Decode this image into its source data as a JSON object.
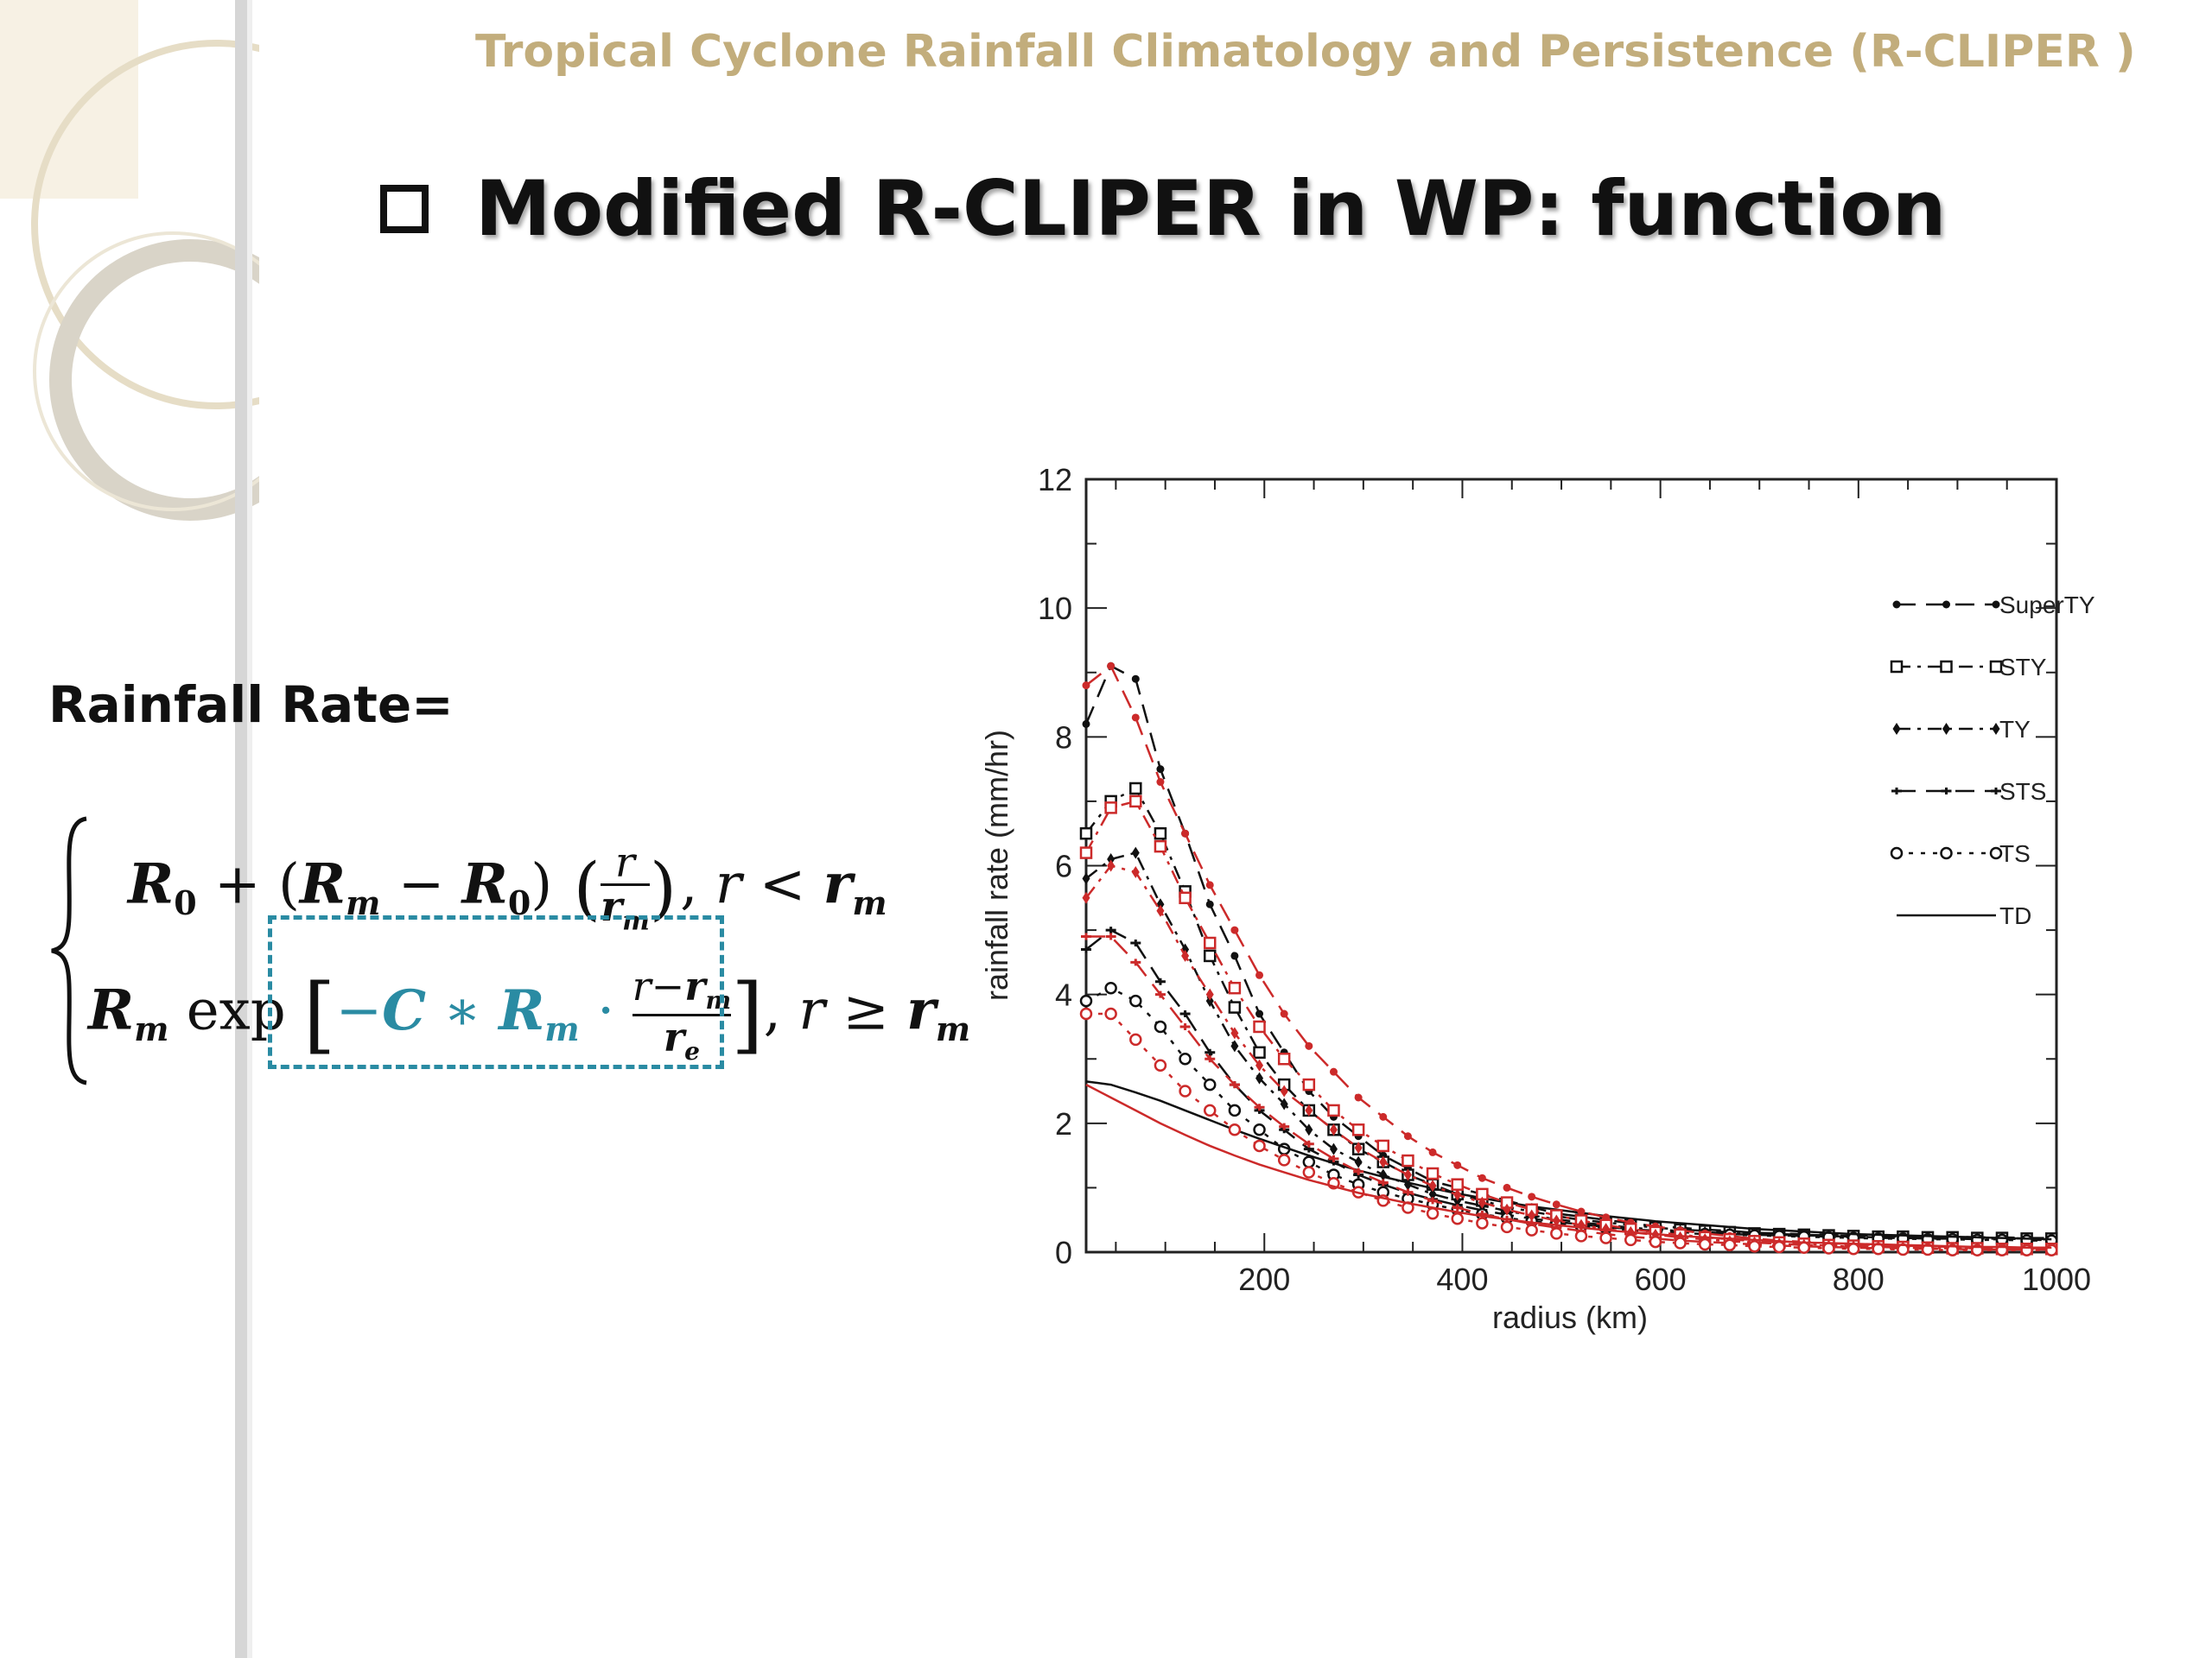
{
  "header": {
    "title": "Tropical Cyclone Rainfall Climatology and Persistence (R-CLIPER )"
  },
  "slide": {
    "title": "Modified R-CLIPER in WP: function"
  },
  "formula": {
    "label": "Rainfall Rate=",
    "case1": {
      "lead": "R",
      "sub": "0",
      "text": " + (R_m − R_0)(r / r_m), r < r_m"
    },
    "case2": {
      "text": "R_m exp[−C ∗ R_m · (r−r_m)/r_e], r ≥ r_m"
    },
    "highlight_color": "#2a8ba3"
  },
  "chart_data": {
    "type": "line",
    "xlabel": "radius (km)",
    "ylabel": "rainfall rate (mm/hr)",
    "xlim": [
      20,
      1000
    ],
    "ylim": [
      0,
      12
    ],
    "xticks": [
      200,
      400,
      600,
      800,
      1000
    ],
    "yticks": [
      0,
      2,
      4,
      6,
      8,
      10,
      12
    ],
    "legend_position": "top-right",
    "x": [
      20,
      45,
      70,
      95,
      120,
      145,
      170,
      195,
      220,
      245,
      270,
      295,
      320,
      345,
      370,
      395,
      420,
      445,
      470,
      495,
      520,
      545,
      570,
      595,
      620,
      645,
      670,
      695,
      720,
      745,
      770,
      795,
      820,
      845,
      870,
      895,
      920,
      945,
      970,
      995
    ],
    "series": [
      {
        "name": "SuperTY",
        "color": "#111111",
        "marker": "dot",
        "dash": "long",
        "values": [
          8.2,
          9.1,
          8.9,
          7.5,
          6.5,
          5.4,
          4.6,
          3.7,
          3.1,
          2.5,
          2.1,
          1.8,
          1.5,
          1.3,
          1.1,
          1.0,
          0.9,
          0.8,
          0.7,
          0.6,
          0.55,
          0.5,
          0.45,
          0.4,
          0.38,
          0.35,
          0.33,
          0.3,
          0.29,
          0.28,
          0.27,
          0.26,
          0.25,
          0.25,
          0.24,
          0.24,
          0.23,
          0.23,
          0.22,
          0.22
        ]
      },
      {
        "name": "STY",
        "color": "#111111",
        "marker": "square",
        "dash": "dashdot",
        "values": [
          6.5,
          7.0,
          7.2,
          6.5,
          5.6,
          4.6,
          3.8,
          3.1,
          2.6,
          2.2,
          1.9,
          1.6,
          1.4,
          1.2,
          1.05,
          0.9,
          0.8,
          0.7,
          0.63,
          0.56,
          0.5,
          0.46,
          0.42,
          0.38,
          0.35,
          0.33,
          0.31,
          0.29,
          0.28,
          0.27,
          0.26,
          0.25,
          0.24,
          0.24,
          0.23,
          0.23,
          0.22,
          0.22,
          0.21,
          0.21
        ]
      },
      {
        "name": "TY",
        "color": "#111111",
        "marker": "diamond",
        "dash": "dashdot",
        "values": [
          5.8,
          6.1,
          6.2,
          5.4,
          4.7,
          3.9,
          3.2,
          2.7,
          2.3,
          1.9,
          1.6,
          1.4,
          1.2,
          1.05,
          0.9,
          0.8,
          0.72,
          0.64,
          0.57,
          0.51,
          0.46,
          0.42,
          0.38,
          0.35,
          0.33,
          0.31,
          0.29,
          0.28,
          0.27,
          0.26,
          0.25,
          0.24,
          0.23,
          0.23,
          0.22,
          0.22,
          0.21,
          0.21,
          0.2,
          0.2
        ]
      },
      {
        "name": "STS",
        "color": "#111111",
        "marker": "plus",
        "dash": "long",
        "values": [
          4.7,
          5.0,
          4.8,
          4.2,
          3.7,
          3.1,
          2.6,
          2.2,
          1.9,
          1.6,
          1.4,
          1.2,
          1.05,
          0.92,
          0.82,
          0.73,
          0.65,
          0.58,
          0.52,
          0.47,
          0.43,
          0.39,
          0.36,
          0.33,
          0.31,
          0.29,
          0.28,
          0.27,
          0.26,
          0.25,
          0.24,
          0.23,
          0.22,
          0.22,
          0.21,
          0.21,
          0.2,
          0.2,
          0.19,
          0.19
        ]
      },
      {
        "name": "TS",
        "color": "#111111",
        "marker": "circle",
        "dash": "dotted",
        "values": [
          3.9,
          4.1,
          3.9,
          3.5,
          3.0,
          2.6,
          2.2,
          1.9,
          1.6,
          1.4,
          1.2,
          1.05,
          0.93,
          0.83,
          0.74,
          0.66,
          0.59,
          0.53,
          0.48,
          0.44,
          0.4,
          0.37,
          0.34,
          0.32,
          0.3,
          0.28,
          0.27,
          0.26,
          0.25,
          0.24,
          0.23,
          0.22,
          0.21,
          0.21,
          0.2,
          0.2,
          0.19,
          0.19,
          0.18,
          0.18
        ]
      },
      {
        "name": "TD",
        "color": "#111111",
        "marker": "none",
        "dash": "solid",
        "values": [
          2.65,
          2.6,
          2.48,
          2.35,
          2.2,
          2.05,
          1.9,
          1.76,
          1.63,
          1.5,
          1.38,
          1.27,
          1.17,
          1.08,
          0.99,
          0.91,
          0.84,
          0.77,
          0.71,
          0.66,
          0.61,
          0.56,
          0.52,
          0.48,
          0.45,
          0.42,
          0.39,
          0.36,
          0.34,
          0.32,
          0.3,
          0.28,
          0.27,
          0.26,
          0.25,
          0.24,
          0.23,
          0.22,
          0.21,
          0.2
        ]
      },
      {
        "color": "#cc2a2a",
        "marker": "dot",
        "dash": "long",
        "values": [
          8.8,
          9.1,
          8.3,
          7.3,
          6.5,
          5.7,
          5.0,
          4.3,
          3.7,
          3.2,
          2.8,
          2.4,
          2.1,
          1.8,
          1.55,
          1.35,
          1.15,
          1.0,
          0.86,
          0.74,
          0.63,
          0.54,
          0.46,
          0.4,
          0.34,
          0.29,
          0.25,
          0.21,
          0.18,
          0.16,
          0.14,
          0.12,
          0.11,
          0.1,
          0.09,
          0.08,
          0.07,
          0.07,
          0.06,
          0.06
        ]
      },
      {
        "color": "#cc2a2a",
        "marker": "square",
        "dash": "dashdot",
        "values": [
          6.2,
          6.9,
          7.0,
          6.3,
          5.5,
          4.8,
          4.1,
          3.5,
          3.0,
          2.6,
          2.2,
          1.9,
          1.65,
          1.42,
          1.22,
          1.05,
          0.9,
          0.77,
          0.66,
          0.57,
          0.49,
          0.42,
          0.36,
          0.31,
          0.27,
          0.23,
          0.2,
          0.17,
          0.15,
          0.13,
          0.11,
          0.1,
          0.09,
          0.08,
          0.07,
          0.06,
          0.06,
          0.05,
          0.05,
          0.05
        ]
      },
      {
        "color": "#cc2a2a",
        "marker": "diamond",
        "dash": "dashdot",
        "values": [
          5.5,
          6.0,
          5.9,
          5.3,
          4.6,
          4.0,
          3.4,
          2.9,
          2.5,
          2.2,
          1.9,
          1.62,
          1.4,
          1.2,
          1.03,
          0.89,
          0.77,
          0.66,
          0.57,
          0.49,
          0.42,
          0.36,
          0.31,
          0.27,
          0.23,
          0.2,
          0.17,
          0.15,
          0.13,
          0.11,
          0.1,
          0.09,
          0.08,
          0.07,
          0.06,
          0.06,
          0.05,
          0.05,
          0.05,
          0.04
        ]
      },
      {
        "color": "#cc2a2a",
        "marker": "plus",
        "dash": "long",
        "values": [
          4.9,
          4.9,
          4.5,
          4.0,
          3.5,
          3.0,
          2.6,
          2.25,
          1.95,
          1.68,
          1.45,
          1.25,
          1.08,
          0.93,
          0.8,
          0.69,
          0.59,
          0.51,
          0.44,
          0.38,
          0.33,
          0.28,
          0.24,
          0.21,
          0.18,
          0.16,
          0.14,
          0.12,
          0.1,
          0.09,
          0.08,
          0.07,
          0.06,
          0.06,
          0.05,
          0.05,
          0.04,
          0.04,
          0.04,
          0.04
        ]
      },
      {
        "color": "#cc2a2a",
        "marker": "circle",
        "dash": "dotted",
        "values": [
          3.7,
          3.7,
          3.3,
          2.9,
          2.5,
          2.2,
          1.9,
          1.65,
          1.43,
          1.24,
          1.07,
          0.93,
          0.8,
          0.69,
          0.6,
          0.52,
          0.45,
          0.39,
          0.34,
          0.29,
          0.25,
          0.22,
          0.19,
          0.16,
          0.14,
          0.12,
          0.11,
          0.09,
          0.08,
          0.07,
          0.06,
          0.05,
          0.05,
          0.04,
          0.04,
          0.03,
          0.03,
          0.03,
          0.03,
          0.03
        ]
      },
      {
        "color": "#cc2a2a",
        "marker": "none",
        "dash": "solid",
        "values": [
          2.6,
          2.4,
          2.2,
          2.0,
          1.82,
          1.65,
          1.5,
          1.36,
          1.24,
          1.12,
          1.02,
          0.92,
          0.84,
          0.76,
          0.69,
          0.62,
          0.56,
          0.51,
          0.46,
          0.42,
          0.38,
          0.34,
          0.31,
          0.28,
          0.25,
          0.23,
          0.21,
          0.19,
          0.17,
          0.15,
          0.14,
          0.13,
          0.12,
          0.11,
          0.1,
          0.09,
          0.08,
          0.08,
          0.07,
          0.07
        ]
      }
    ]
  }
}
